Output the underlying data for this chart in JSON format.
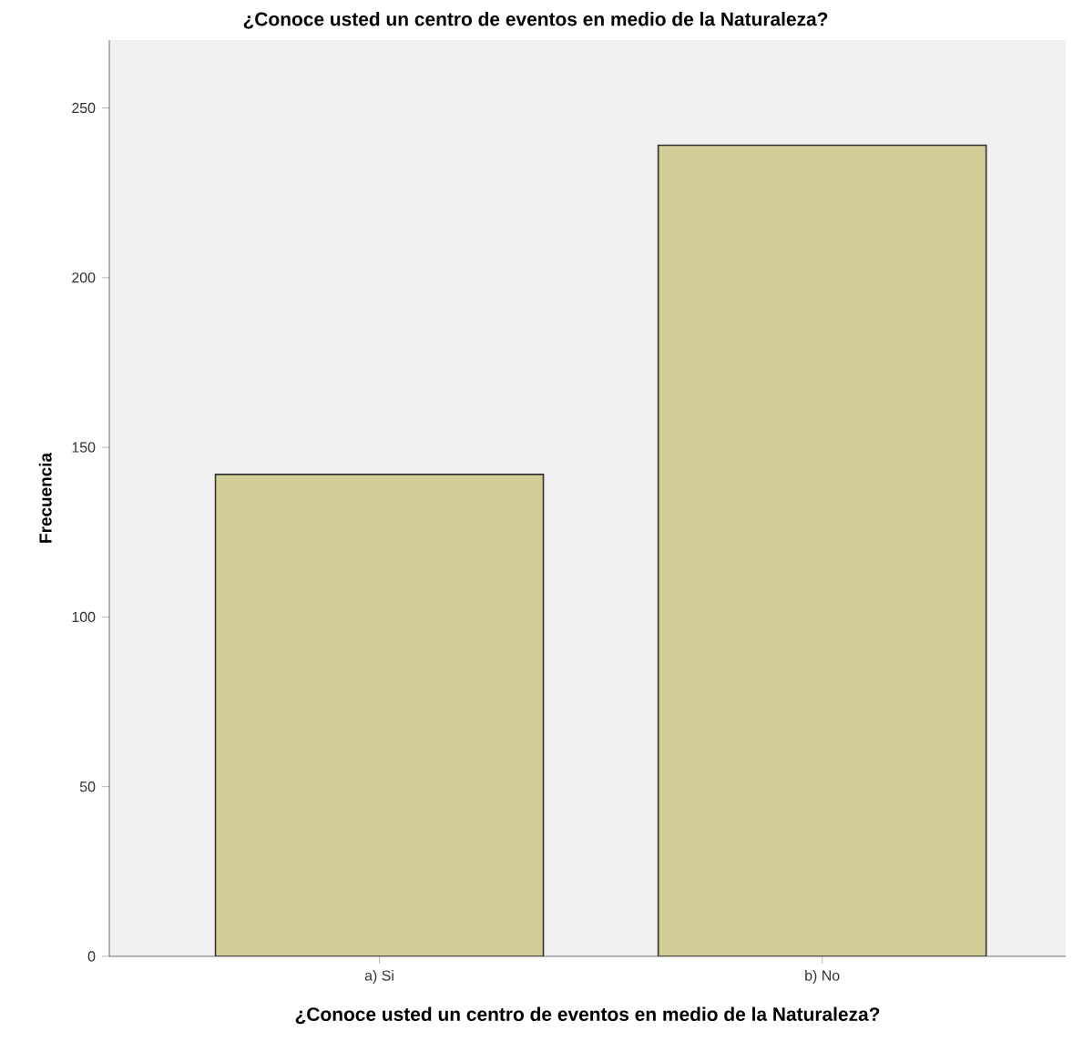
{
  "chart_data": {
    "type": "bar",
    "title": "¿Conoce usted un centro de eventos en medio de la Naturaleza?",
    "xlabel": "¿Conoce usted un centro de eventos en medio de la Naturaleza?",
    "ylabel": "Frecuencia",
    "categories": [
      "a) Si",
      "b) No"
    ],
    "values": [
      142,
      239
    ],
    "color": "#d3ce97",
    "ylim": [
      0,
      270
    ],
    "yticks": [
      0,
      50,
      100,
      150,
      200,
      250
    ],
    "grid": false
  }
}
